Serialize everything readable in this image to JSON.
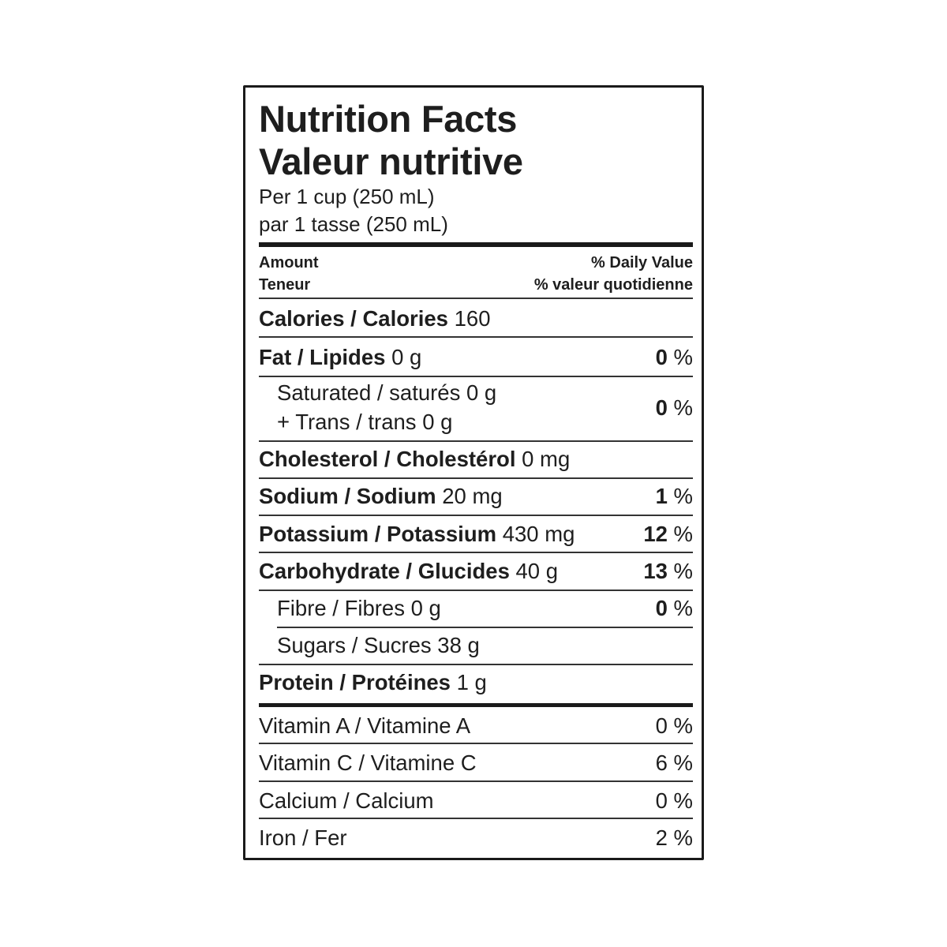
{
  "header": {
    "title_en": "Nutrition Facts",
    "title_fr": "Valeur nutritive",
    "serving_en": "Per 1 cup (250 mL)",
    "serving_fr": "par 1 tasse (250 mL)",
    "amount_en": "Amount",
    "amount_fr": "Teneur",
    "dv_en": "% Daily Value",
    "dv_fr": "% valeur quotidienne"
  },
  "rows": [
    {
      "name": "Calories / Calories",
      "amount": "160",
      "dv": "",
      "bold": true,
      "indent": false
    },
    {
      "name": "Fat / Lipides",
      "amount": "0 g",
      "dv": "0",
      "bold": true,
      "indent": false
    },
    {
      "name": "Saturated / saturés",
      "amount": "0 g",
      "name2": "+ Trans / trans",
      "amount2": "0 g",
      "dv": "0",
      "bold": false,
      "indent": true
    },
    {
      "name": "Cholesterol / Cholestérol",
      "amount": "0 mg",
      "dv": "",
      "bold": true,
      "indent": false
    },
    {
      "name": "Sodium / Sodium",
      "amount": "20 mg",
      "dv": "1",
      "bold": true,
      "indent": false
    },
    {
      "name": "Potassium / Potassium",
      "amount": "430 mg",
      "dv": "12",
      "bold": true,
      "indent": false
    },
    {
      "name": "Carbohydrate / Glucides",
      "amount": "40 g",
      "dv": "13",
      "bold": true,
      "indent": false
    },
    {
      "name": "Fibre / Fibres",
      "amount": "0 g",
      "dv": "0",
      "bold": false,
      "indent": true
    },
    {
      "name": "Sugars / Sucres",
      "amount": "38 g",
      "dv": "",
      "bold": false,
      "indent": true
    },
    {
      "name": "Protein / Protéines",
      "amount": "1 g",
      "dv": "",
      "bold": true,
      "indent": false
    }
  ],
  "vitamins": [
    {
      "name": "Vitamin A / Vitamine A",
      "dv": "0"
    },
    {
      "name": "Vitamin C / Vitamine C",
      "dv": "6"
    },
    {
      "name": "Calcium / Calcium",
      "dv": "0"
    },
    {
      "name": "Iron / Fer",
      "dv": "2"
    }
  ],
  "percent_sign": "%"
}
